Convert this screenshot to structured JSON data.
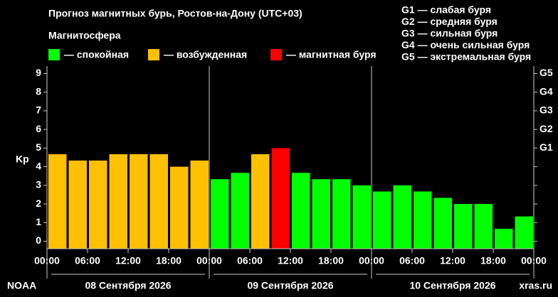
{
  "chart_data": {
    "type": "bar",
    "title": "Прогноз магнитных бурь, Ростов-на-Дону (UTC+03)",
    "legend_title": "Магнитосфера",
    "legend": [
      {
        "name": "— спокойная",
        "color": "#00ff00"
      },
      {
        "name": "— возбужденная",
        "color": "#ffc000"
      },
      {
        "name": "— магнитная буря",
        "color": "#ff0000"
      }
    ],
    "g_legend": [
      "G1 — слабая буря",
      "G2 — средняя буря",
      "G3 — сильная буря",
      "G4 — очень сильная буря",
      "G5 — экстремальная буря"
    ],
    "ylabel": "Kp",
    "values": [
      4.67,
      4.33,
      4.33,
      4.67,
      4.67,
      4.67,
      4.0,
      4.33,
      3.33,
      3.67,
      4.67,
      5.0,
      3.67,
      3.33,
      3.33,
      3.0,
      2.67,
      3.0,
      2.67,
      2.33,
      2.0,
      2.0,
      0.67,
      1.33
    ],
    "colors": [
      "#ffc000",
      "#ffc000",
      "#ffc000",
      "#ffc000",
      "#ffc000",
      "#ffc000",
      "#ffc000",
      "#ffc000",
      "#00ff00",
      "#00ff00",
      "#ffc000",
      "#ff0000",
      "#00ff00",
      "#00ff00",
      "#00ff00",
      "#00ff00",
      "#00ff00",
      "#00ff00",
      "#00ff00",
      "#00ff00",
      "#00ff00",
      "#00ff00",
      "#00ff00",
      "#00ff00"
    ],
    "xlim": [
      0,
      72
    ],
    "xticks": [
      {
        "value": 0,
        "label": "00:00"
      },
      {
        "value": 6,
        "label": "06:00"
      },
      {
        "value": 12,
        "label": "12:00"
      },
      {
        "value": 18,
        "label": "18:00"
      },
      {
        "value": 24,
        "label": "00:00"
      },
      {
        "value": 30,
        "label": "06:00"
      },
      {
        "value": 36,
        "label": "12:00"
      },
      {
        "value": 42,
        "label": "18:00"
      },
      {
        "value": 48,
        "label": "00:00"
      },
      {
        "value": 54,
        "label": "06:00"
      },
      {
        "value": 60,
        "label": "12:00"
      },
      {
        "value": 66,
        "label": "18:00"
      },
      {
        "value": 72,
        "label": "00:00"
      }
    ],
    "days": [
      "08 Сентября 2026",
      "09 Сентября 2026",
      "10 Сентября 2026"
    ],
    "ylim": [
      -0.4,
      9.4
    ],
    "yticks": [
      0,
      1,
      2,
      3,
      4,
      5,
      6,
      7,
      8,
      9
    ],
    "y2lim": [
      -0.4,
      9.4
    ],
    "y2ticks": [
      {
        "value": 5,
        "label": "G1"
      },
      {
        "value": 6,
        "label": "G2"
      },
      {
        "value": 7,
        "label": "G3"
      },
      {
        "value": 8,
        "label": "G4"
      },
      {
        "value": 9,
        "label": "G5"
      }
    ],
    "source": "NOAA",
    "site": "xras.ru"
  }
}
